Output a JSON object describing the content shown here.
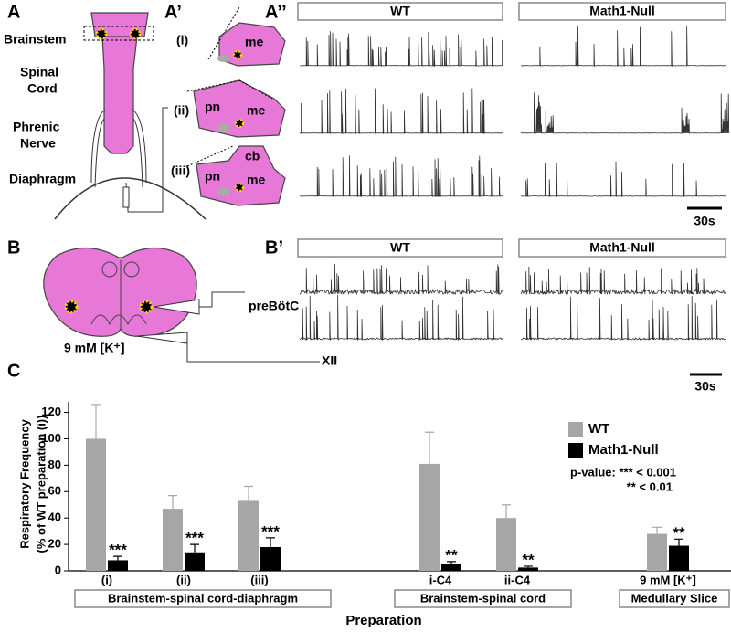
{
  "panel_labels": {
    "a": "A",
    "a_prime": "A’",
    "a_double_prime": "A’’",
    "b": "B",
    "b_prime": "B’",
    "c": "C"
  },
  "panel_a": {
    "brainstem": "Brainstem",
    "spinal": [
      "Spinal",
      "Cord"
    ],
    "phrenic": [
      "Phrenic",
      "Nerve"
    ],
    "diaphragm": "Diaphragm"
  },
  "panel_a_prime": {
    "preparations": [
      "(i)",
      "(ii)",
      "(iii)"
    ],
    "me": "me",
    "pn": "pn",
    "cb": "cb"
  },
  "panel_a_double_prime": {
    "wt": "WT",
    "null": "Math1-Null",
    "scale": "30s"
  },
  "panel_b": {
    "sites": [
      "preBötC",
      "XII"
    ],
    "condition": "9 mM [K⁺]"
  },
  "panel_b_prime": {
    "wt": "WT",
    "null": "Math1-Null",
    "scale": "30s"
  },
  "chart_data": {
    "type": "bar",
    "ylabel": [
      "Respiratory Frequency",
      "(% of WT preparation (i))"
    ],
    "xlabel": "Preparation",
    "categories": [
      "(i)",
      "(ii)",
      "(iii)",
      "i-C4",
      "ii-C4",
      "9 mM [K⁺]"
    ],
    "groups": [
      "Brainstem-spinal cord-diaphragm",
      "Brainstem-spinal cord",
      "Medullary Slice"
    ],
    "series": [
      {
        "name": "WT",
        "color": "#a6a6a6",
        "values": [
          100,
          47,
          53,
          81,
          40,
          28
        ],
        "errors": [
          26,
          10,
          11,
          24,
          10,
          5
        ]
      },
      {
        "name": "Math1-Null",
        "color": "#000000",
        "values": [
          8,
          14,
          18,
          5,
          2.5,
          19
        ],
        "errors": [
          3,
          6,
          7,
          2,
          1,
          5
        ],
        "significance": [
          "***",
          "***",
          "***",
          "**",
          "**",
          "**"
        ]
      }
    ],
    "ylim": [
      0,
      128
    ],
    "yticks": [
      0,
      20,
      40,
      60,
      80,
      100,
      120
    ],
    "legend_position": "upper right",
    "pvalue_note": [
      "p-value: *** < 0.001",
      "** < 0.01"
    ]
  }
}
